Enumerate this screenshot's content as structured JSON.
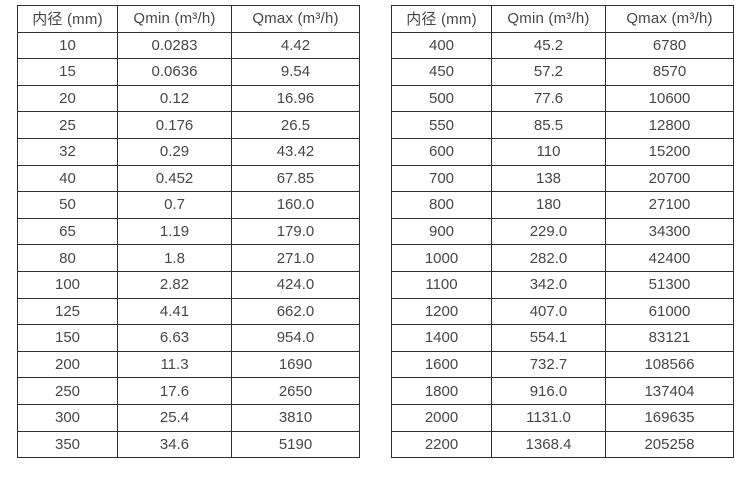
{
  "tables": [
    {
      "name": "inner-diameter-flow-range-table-small",
      "headers": [
        "内径 (mm)",
        "Qmin (m³/h)",
        "Qmax (m³/h)"
      ],
      "rows": [
        [
          "10",
          "0.0283",
          "4.42"
        ],
        [
          "15",
          "0.0636",
          "9.54"
        ],
        [
          "20",
          "0.12",
          "16.96"
        ],
        [
          "25",
          "0.176",
          "26.5"
        ],
        [
          "32",
          "0.29",
          "43.42"
        ],
        [
          "40",
          "0.452",
          "67.85"
        ],
        [
          "50",
          "0.7",
          "160.0"
        ],
        [
          "65",
          "1.19",
          "179.0"
        ],
        [
          "80",
          "1.8",
          "271.0"
        ],
        [
          "100",
          "2.82",
          "424.0"
        ],
        [
          "125",
          "4.41",
          "662.0"
        ],
        [
          "150",
          "6.63",
          "954.0"
        ],
        [
          "200",
          "11.3",
          "1690"
        ],
        [
          "250",
          "17.6",
          "2650"
        ],
        [
          "300",
          "25.4",
          "3810"
        ],
        [
          "350",
          "34.6",
          "5190"
        ]
      ]
    },
    {
      "name": "inner-diameter-flow-range-table-large",
      "headers": [
        "内径 (mm)",
        "Qmin (m³/h)",
        "Qmax (m³/h)"
      ],
      "rows": [
        [
          "400",
          "45.2",
          "6780"
        ],
        [
          "450",
          "57.2",
          "8570"
        ],
        [
          "500",
          "77.6",
          "10600"
        ],
        [
          "550",
          "85.5",
          "12800"
        ],
        [
          "600",
          "110",
          "15200"
        ],
        [
          "700",
          "138",
          "20700"
        ],
        [
          "800",
          "180",
          "27100"
        ],
        [
          "900",
          "229.0",
          "34300"
        ],
        [
          "1000",
          "282.0",
          "42400"
        ],
        [
          "1100",
          "342.0",
          "51300"
        ],
        [
          "1200",
          "407.0",
          "61000"
        ],
        [
          "1400",
          "554.1",
          "83121"
        ],
        [
          "1600",
          "732.7",
          "108566"
        ],
        [
          "1800",
          "916.0",
          "137404"
        ],
        [
          "2000",
          "1131.0",
          "169635"
        ],
        [
          "2200",
          "1368.4",
          "205258"
        ]
      ]
    },
    {
      "colors": {
        "text": "#474747",
        "border": "#2e2e2e",
        "background": "#ffffff"
      }
    }
  ]
}
